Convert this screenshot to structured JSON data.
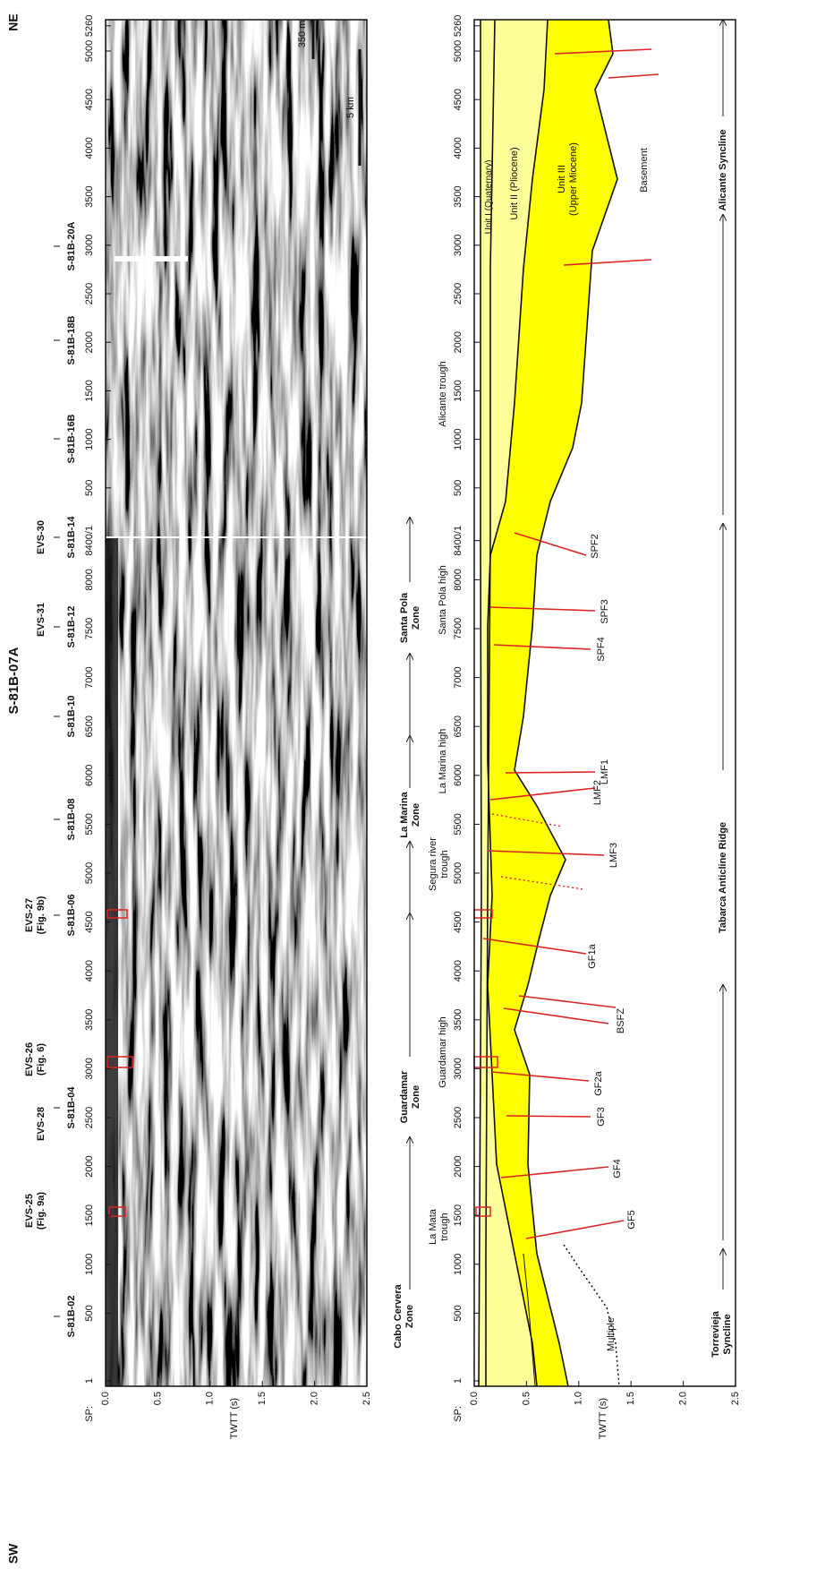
{
  "directions": {
    "left": "SW",
    "right": "NE"
  },
  "profile_title": "S-81B-07A",
  "shotpoint_label": "SP:",
  "time_axis_label": "TWTT (s)",
  "shotpoints": [
    "1",
    "500",
    "1000",
    "1500",
    "2000",
    "2500",
    "3000",
    "3500",
    "4000",
    "4500",
    "5000",
    "5500",
    "6000",
    "6500",
    "7000",
    "7500",
    "8000",
    "8400/1",
    "500",
    "1000",
    "1500",
    "2000",
    "2500",
    "3000",
    "3500",
    "4000",
    "4500",
    "5000",
    "5260"
  ],
  "time_ticks": [
    "0.0",
    "0.5",
    "1.0",
    "1.5",
    "2.0",
    "2.5"
  ],
  "crossing_lines": [
    "S-81B-02",
    "S-81B-04",
    "S-81B-06",
    "S-81B-08",
    "S-81B-10",
    "S-81B-12",
    "S-81B-14",
    "S-81B-16B",
    "S-81B-18B",
    "S-81B-20A"
  ],
  "sites": [
    [
      "EVS-25",
      "(Fig. 9a)"
    ],
    [
      "EVS-28"
    ],
    [
      "EVS-26",
      "(Fig. 6)"
    ],
    [
      "EVS-27",
      "(Fig. 9b)"
    ],
    [
      "EVS-31"
    ],
    [
      "EVS-30"
    ]
  ],
  "scale_bars": [
    "350 m",
    "5 km"
  ],
  "zones": [
    [
      "Cabo Cervera",
      "Zone"
    ],
    [
      "Guardamar",
      "Zone"
    ],
    [
      "La Marina",
      "Zone"
    ],
    [
      "Santa Pola",
      "Zone"
    ]
  ],
  "domains": [
    [
      "La Mata",
      "trough"
    ],
    [
      "Guardamar high"
    ],
    [
      "Segura river",
      "trough"
    ],
    [
      "La Marina high"
    ],
    [
      "Santa Pola high"
    ],
    [
      "Alicante trough"
    ]
  ],
  "structures": [
    [
      "Torrevieja",
      "Syncline"
    ],
    [
      "Tabarca Anticline Ridge"
    ],
    [
      "Alicante Syncline"
    ]
  ],
  "units": [
    [
      "Unit I (Quaternary)"
    ],
    [
      "Unit II (Pliocene)"
    ],
    [
      "Unit III",
      "(Upper Miocene)"
    ],
    [
      "Basement"
    ]
  ],
  "faults": [
    "SPF2",
    "SPF3",
    "SPF4",
    "LMF1",
    "LMF2",
    "LMF3",
    "GF1a",
    "BSFZ",
    "GF2a",
    "GF3",
    "GF4",
    "GF5"
  ],
  "multiple": "Multiple"
}
